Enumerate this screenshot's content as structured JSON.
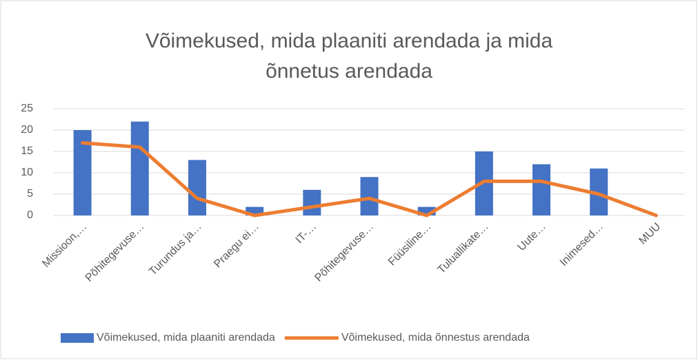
{
  "chart_data": {
    "type": "combo",
    "title": "Võimekused, mida plaaniti arendada ja mida õnnetus arendada",
    "categories": [
      "Missioon,…",
      "Põhitegevuse…",
      "Turundus ja…",
      "Praegu ei…",
      "IT-…",
      "Põhitegevuse…",
      "Füüsiline…",
      "Tuluallikate…",
      "Uute…",
      "Inimesed…",
      "MUU"
    ],
    "series": [
      {
        "name": "Võimekused, mida plaaniti arendada",
        "type": "bar",
        "color": "#4472c4",
        "values": [
          20,
          22,
          13,
          2,
          6,
          9,
          2,
          15,
          12,
          11,
          0
        ]
      },
      {
        "name": "Võimekused, mida õnnestus arendada",
        "type": "line",
        "color": "#ed7d31",
        "values": [
          17,
          16,
          4,
          0,
          2,
          4,
          0,
          8,
          8,
          5,
          0
        ]
      }
    ],
    "ylim": [
      0,
      25
    ],
    "yticks": [
      0,
      5,
      10,
      15,
      20,
      25
    ],
    "grid": true,
    "legend": "bottom"
  }
}
